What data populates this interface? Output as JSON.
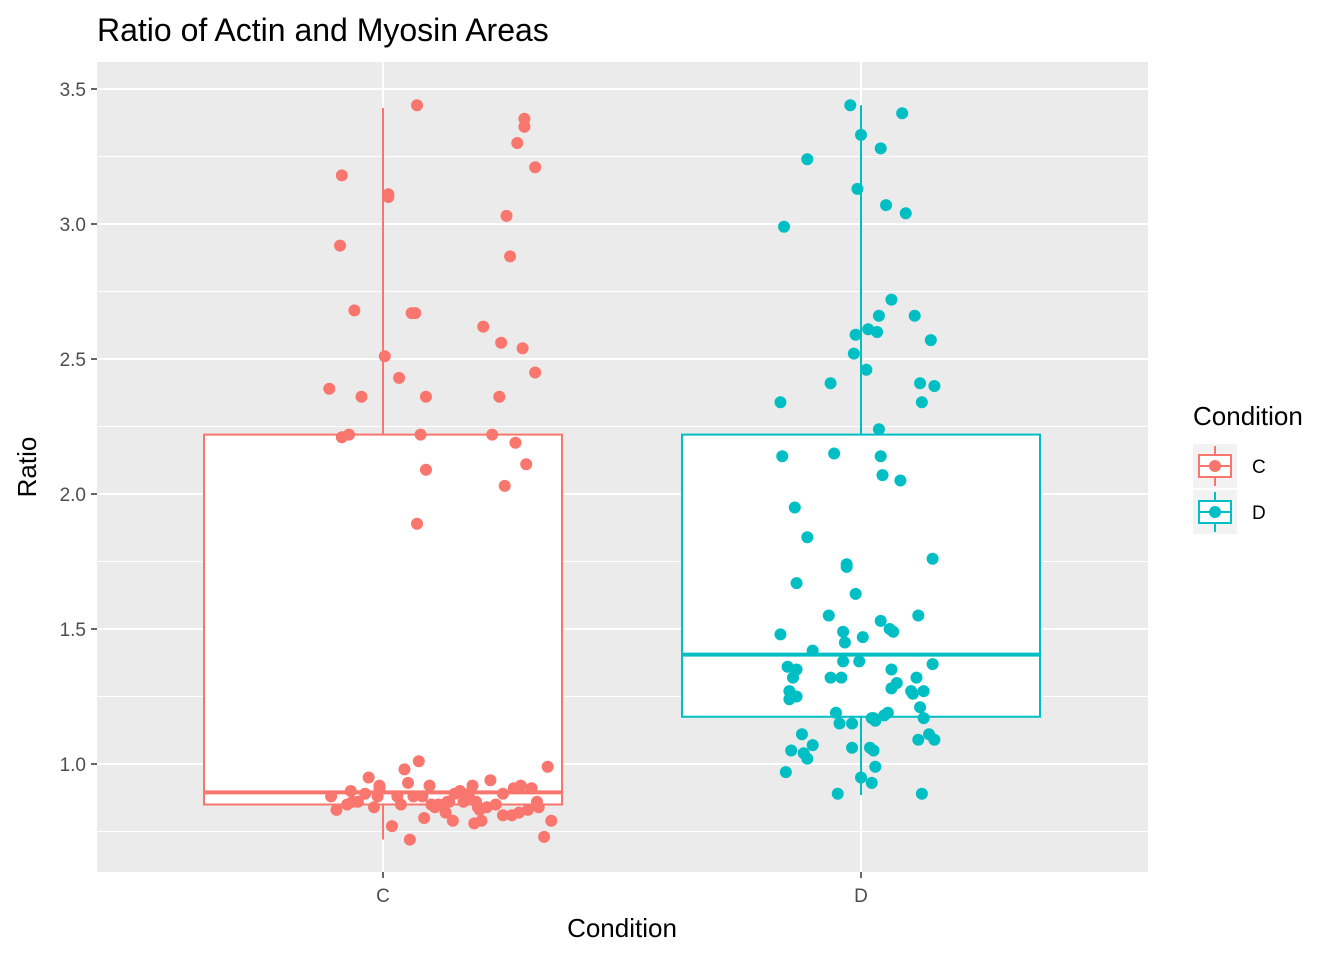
{
  "chart_data": {
    "type": "boxplot+jitter",
    "title": "Ratio of Actin and Myosin Areas",
    "xlabel": "Condition",
    "ylabel": "Ratio",
    "categories": [
      "C",
      "D"
    ],
    "ylim": [
      0.6,
      3.6
    ],
    "yticks": [
      "1.0",
      "1.5",
      "2.0",
      "2.5",
      "3.0",
      "3.5"
    ],
    "ytick_values": [
      1.0,
      1.5,
      2.0,
      2.5,
      3.0,
      3.5
    ],
    "grid": true,
    "legend": {
      "title": "Condition",
      "placement": "right",
      "entries": [
        {
          "label": "C",
          "color": "#F8766D"
        },
        {
          "label": "D",
          "color": "#00BFC4"
        }
      ]
    },
    "boxes": [
      {
        "category": "C",
        "color": "#F8766D",
        "q1": 0.85,
        "median": 0.895,
        "q3": 2.22,
        "whisker_low": 0.72,
        "whisker_high": 3.43
      },
      {
        "category": "D",
        "color": "#00BFC4",
        "q1": 1.175,
        "median": 1.405,
        "q3": 2.22,
        "whisker_low": 0.885,
        "whisker_high": 3.44
      }
    ],
    "points": {
      "C": [
        {
          "jitter": -0.3,
          "y": 2.39
        },
        {
          "jitter": -0.29,
          "y": 0.88
        },
        {
          "jitter": -0.26,
          "y": 0.83
        },
        {
          "jitter": -0.23,
          "y": 3.18
        },
        {
          "jitter": -0.24,
          "y": 2.92
        },
        {
          "jitter": -0.23,
          "y": 2.21
        },
        {
          "jitter": -0.2,
          "y": 0.85
        },
        {
          "jitter": -0.19,
          "y": 2.22
        },
        {
          "jitter": -0.18,
          "y": 0.9
        },
        {
          "jitter": -0.17,
          "y": 0.86
        },
        {
          "jitter": -0.16,
          "y": 2.68
        },
        {
          "jitter": -0.14,
          "y": 0.86
        },
        {
          "jitter": -0.12,
          "y": 2.36
        },
        {
          "jitter": -0.1,
          "y": 0.89
        },
        {
          "jitter": -0.08,
          "y": 0.95
        },
        {
          "jitter": -0.05,
          "y": 0.84
        },
        {
          "jitter": -0.03,
          "y": 0.88
        },
        {
          "jitter": -0.02,
          "y": 0.91
        },
        {
          "jitter": 0.01,
          "y": 2.51
        },
        {
          "jitter": 0.03,
          "y": 3.11
        },
        {
          "jitter": 0.03,
          "y": 3.1
        },
        {
          "jitter": 0.05,
          "y": 0.77
        },
        {
          "jitter": 0.08,
          "y": 0.88
        },
        {
          "jitter": 0.09,
          "y": 2.43
        },
        {
          "jitter": 0.1,
          "y": 0.85
        },
        {
          "jitter": 0.12,
          "y": 0.98
        },
        {
          "jitter": 0.14,
          "y": 0.93
        },
        {
          "jitter": 0.15,
          "y": 0.72
        },
        {
          "jitter": 0.16,
          "y": 2.67
        },
        {
          "jitter": 0.17,
          "y": 0.88
        },
        {
          "jitter": 0.18,
          "y": 2.67
        },
        {
          "jitter": 0.19,
          "y": 1.89
        },
        {
          "jitter": 0.19,
          "y": 3.44
        },
        {
          "jitter": 0.2,
          "y": 1.01
        },
        {
          "jitter": 0.21,
          "y": 2.22
        },
        {
          "jitter": 0.22,
          "y": 0.88
        },
        {
          "jitter": 0.23,
          "y": 0.8
        },
        {
          "jitter": 0.24,
          "y": 2.09
        },
        {
          "jitter": 0.24,
          "y": 2.36
        },
        {
          "jitter": 0.26,
          "y": 0.92
        },
        {
          "jitter": 0.27,
          "y": 0.85
        },
        {
          "jitter": 0.29,
          "y": 0.84
        },
        {
          "jitter": 0.31,
          "y": 0.85
        },
        {
          "jitter": 0.35,
          "y": 0.82
        },
        {
          "jitter": 0.37,
          "y": 0.86
        },
        {
          "jitter": 0.39,
          "y": 0.79
        },
        {
          "jitter": 0.45,
          "y": 0.86
        },
        {
          "jitter": 0.48,
          "y": 0.89
        },
        {
          "jitter": 0.5,
          "y": 0.92
        },
        {
          "jitter": 0.51,
          "y": 0.78
        },
        {
          "jitter": 0.53,
          "y": 0.84
        },
        {
          "jitter": 0.55,
          "y": 0.79
        },
        {
          "jitter": 0.56,
          "y": 2.62
        },
        {
          "jitter": 0.58,
          "y": 0.84
        },
        {
          "jitter": 0.6,
          "y": 0.94
        },
        {
          "jitter": 0.61,
          "y": 2.22
        },
        {
          "jitter": 0.63,
          "y": 0.85
        },
        {
          "jitter": 0.65,
          "y": 2.36
        },
        {
          "jitter": 0.66,
          "y": 2.56
        },
        {
          "jitter": 0.67,
          "y": 0.89
        },
        {
          "jitter": 0.67,
          "y": 0.81
        },
        {
          "jitter": 0.68,
          "y": 2.03
        },
        {
          "jitter": 0.69,
          "y": 3.03
        },
        {
          "jitter": 0.71,
          "y": 2.88
        },
        {
          "jitter": 0.72,
          "y": 0.81
        },
        {
          "jitter": 0.73,
          "y": 0.91
        },
        {
          "jitter": 0.74,
          "y": 2.19
        },
        {
          "jitter": 0.75,
          "y": 3.3
        },
        {
          "jitter": 0.76,
          "y": 0.82
        },
        {
          "jitter": 0.77,
          "y": 0.92
        },
        {
          "jitter": 0.78,
          "y": 2.54
        },
        {
          "jitter": 0.79,
          "y": 3.36
        },
        {
          "jitter": 0.79,
          "y": 3.39
        },
        {
          "jitter": 0.8,
          "y": 2.11
        },
        {
          "jitter": 0.81,
          "y": 0.83
        },
        {
          "jitter": 0.83,
          "y": 0.91
        },
        {
          "jitter": 0.85,
          "y": 3.21
        },
        {
          "jitter": 0.85,
          "y": 2.45
        },
        {
          "jitter": 0.86,
          "y": 0.86
        },
        {
          "jitter": 0.87,
          "y": 0.84
        },
        {
          "jitter": 0.9,
          "y": 0.73
        },
        {
          "jitter": 0.92,
          "y": 0.99
        },
        {
          "jitter": 0.94,
          "y": 0.79
        },
        {
          "jitter": -0.02,
          "y": 0.92
        },
        {
          "jitter": 0.36,
          "y": 0.86
        },
        {
          "jitter": 0.4,
          "y": 0.89
        },
        {
          "jitter": 0.43,
          "y": 0.9
        },
        {
          "jitter": 0.46,
          "y": 0.87
        },
        {
          "jitter": 0.52,
          "y": 0.86
        },
        {
          "jitter": 0.54,
          "y": 0.83
        }
      ],
      "D": [
        {
          "jitter": -0.45,
          "y": 2.34
        },
        {
          "jitter": -0.45,
          "y": 1.48
        },
        {
          "jitter": -0.44,
          "y": 2.14
        },
        {
          "jitter": -0.43,
          "y": 2.99
        },
        {
          "jitter": -0.42,
          "y": 0.97
        },
        {
          "jitter": -0.41,
          "y": 1.36
        },
        {
          "jitter": -0.4,
          "y": 1.27
        },
        {
          "jitter": -0.4,
          "y": 1.24
        },
        {
          "jitter": -0.39,
          "y": 1.05
        },
        {
          "jitter": -0.38,
          "y": 1.32
        },
        {
          "jitter": -0.37,
          "y": 1.95
        },
        {
          "jitter": -0.36,
          "y": 1.67
        },
        {
          "jitter": -0.36,
          "y": 1.35
        },
        {
          "jitter": -0.36,
          "y": 1.25
        },
        {
          "jitter": -0.33,
          "y": 1.11
        },
        {
          "jitter": -0.32,
          "y": 1.04
        },
        {
          "jitter": -0.3,
          "y": 3.24
        },
        {
          "jitter": -0.3,
          "y": 1.84
        },
        {
          "jitter": -0.3,
          "y": 1.02
        },
        {
          "jitter": -0.27,
          "y": 1.42
        },
        {
          "jitter": -0.27,
          "y": 1.07
        },
        {
          "jitter": -0.18,
          "y": 1.55
        },
        {
          "jitter": -0.17,
          "y": 2.41
        },
        {
          "jitter": -0.17,
          "y": 1.32
        },
        {
          "jitter": -0.15,
          "y": 2.15
        },
        {
          "jitter": -0.14,
          "y": 1.19
        },
        {
          "jitter": -0.13,
          "y": 0.89
        },
        {
          "jitter": -0.12,
          "y": 1.15
        },
        {
          "jitter": -0.11,
          "y": 1.32
        },
        {
          "jitter": -0.1,
          "y": 1.38
        },
        {
          "jitter": -0.1,
          "y": 1.49
        },
        {
          "jitter": -0.09,
          "y": 1.45
        },
        {
          "jitter": -0.08,
          "y": 1.73
        },
        {
          "jitter": -0.08,
          "y": 1.74
        },
        {
          "jitter": -0.06,
          "y": 3.44
        },
        {
          "jitter": -0.05,
          "y": 1.15
        },
        {
          "jitter": -0.05,
          "y": 1.06
        },
        {
          "jitter": -0.04,
          "y": 2.52
        },
        {
          "jitter": -0.03,
          "y": 2.59
        },
        {
          "jitter": -0.03,
          "y": 1.63
        },
        {
          "jitter": -0.01,
          "y": 1.38
        },
        {
          "jitter": 0.0,
          "y": 3.33
        },
        {
          "jitter": 0.0,
          "y": 0.95
        },
        {
          "jitter": -0.02,
          "y": 3.13
        },
        {
          "jitter": 0.01,
          "y": 1.47
        },
        {
          "jitter": 0.03,
          "y": 2.46
        },
        {
          "jitter": 0.04,
          "y": 2.61
        },
        {
          "jitter": 0.05,
          "y": 1.06
        },
        {
          "jitter": 0.06,
          "y": 1.17
        },
        {
          "jitter": 0.06,
          "y": 0.93
        },
        {
          "jitter": 0.07,
          "y": 1.17
        },
        {
          "jitter": 0.07,
          "y": 1.05
        },
        {
          "jitter": 0.08,
          "y": 0.99
        },
        {
          "jitter": 0.08,
          "y": 1.16
        },
        {
          "jitter": 0.09,
          "y": 2.6
        },
        {
          "jitter": 0.1,
          "y": 2.24
        },
        {
          "jitter": 0.1,
          "y": 2.66
        },
        {
          "jitter": 0.11,
          "y": 3.28
        },
        {
          "jitter": 0.11,
          "y": 1.53
        },
        {
          "jitter": 0.11,
          "y": 2.14
        },
        {
          "jitter": 0.12,
          "y": 2.07
        },
        {
          "jitter": 0.13,
          "y": 1.18
        },
        {
          "jitter": 0.14,
          "y": 3.07
        },
        {
          "jitter": 0.15,
          "y": 1.19
        },
        {
          "jitter": 0.16,
          "y": 1.5
        },
        {
          "jitter": 0.17,
          "y": 2.72
        },
        {
          "jitter": 0.17,
          "y": 1.35
        },
        {
          "jitter": 0.17,
          "y": 1.28
        },
        {
          "jitter": 0.18,
          "y": 1.49
        },
        {
          "jitter": 0.2,
          "y": 1.3
        },
        {
          "jitter": 0.22,
          "y": 2.05
        },
        {
          "jitter": 0.23,
          "y": 3.41
        },
        {
          "jitter": 0.25,
          "y": 3.04
        },
        {
          "jitter": 0.28,
          "y": 1.27
        },
        {
          "jitter": 0.29,
          "y": 1.26
        },
        {
          "jitter": 0.3,
          "y": 2.66
        },
        {
          "jitter": 0.31,
          "y": 1.32
        },
        {
          "jitter": 0.32,
          "y": 1.55
        },
        {
          "jitter": 0.32,
          "y": 1.09
        },
        {
          "jitter": 0.33,
          "y": 2.41
        },
        {
          "jitter": 0.33,
          "y": 1.21
        },
        {
          "jitter": 0.34,
          "y": 2.34
        },
        {
          "jitter": 0.34,
          "y": 0.89
        },
        {
          "jitter": 0.35,
          "y": 1.27
        },
        {
          "jitter": 0.35,
          "y": 1.17
        },
        {
          "jitter": 0.38,
          "y": 1.11
        },
        {
          "jitter": 0.39,
          "y": 2.57
        },
        {
          "jitter": 0.4,
          "y": 1.76
        },
        {
          "jitter": 0.4,
          "y": 1.37
        },
        {
          "jitter": 0.41,
          "y": 2.4
        },
        {
          "jitter": 0.41,
          "y": 1.09
        }
      ]
    }
  }
}
